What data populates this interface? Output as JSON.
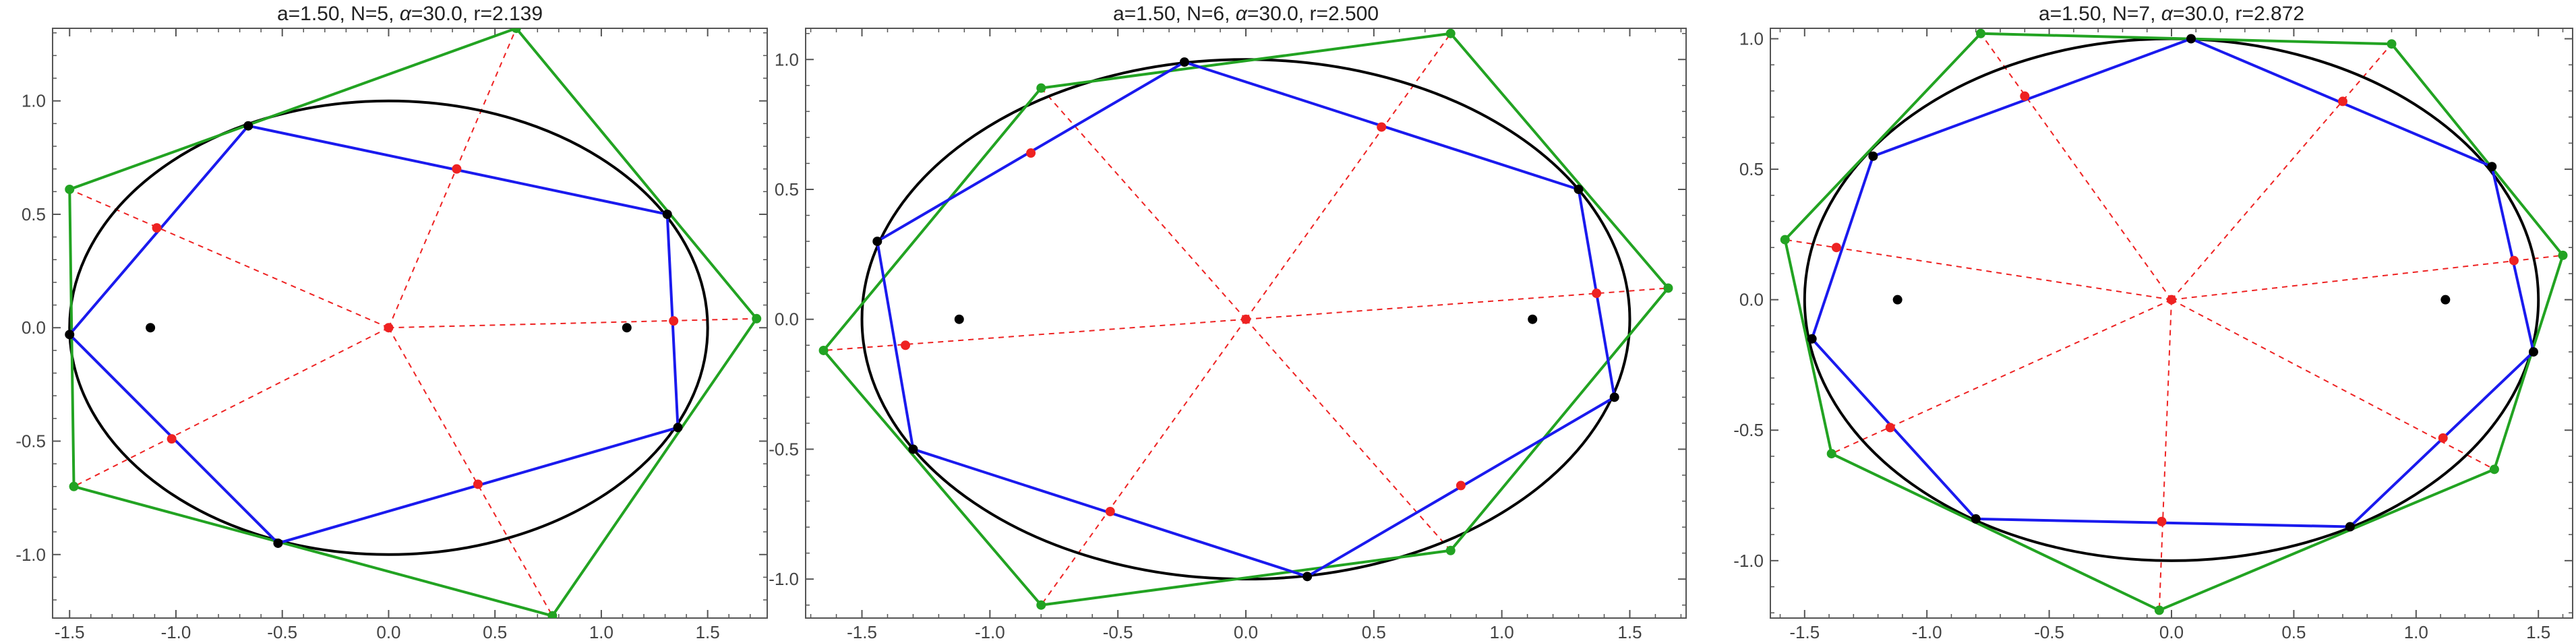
{
  "panels": [
    {
      "title": "a=1.50, N=5, α=30.0, r=2.139",
      "title_parts": [
        "a=1.50, N=5, ",
        "α",
        "=30.0, r=2.139"
      ],
      "xrange": [
        -1.58,
        1.78
      ],
      "yrange": [
        -1.28,
        1.32
      ],
      "xticks": [
        -1.5,
        -1.0,
        -0.5,
        0.0,
        0.5,
        1.0,
        1.5
      ],
      "xtick_labels": [
        "-1.5",
        "-1.0",
        "-0.5",
        "0.0",
        "0.5",
        "1.0",
        "1.5"
      ],
      "yticks": [
        -1.0,
        -0.5,
        0.0,
        0.5,
        1.0
      ],
      "ytick_labels": [
        "-1.0",
        "-0.5",
        "0.0",
        "0.5",
        "1.0"
      ],
      "center": [
        0.0,
        0.0
      ],
      "foci": [
        [
          -1.12,
          0.0
        ],
        [
          1.12,
          0.0
        ]
      ],
      "inner": [
        [
          -1.5,
          -0.03
        ],
        [
          -0.66,
          0.89
        ],
        [
          1.31,
          0.5
        ],
        [
          1.36,
          -0.44
        ],
        [
          -0.52,
          -0.95
        ]
      ],
      "outer": [
        [
          -1.5,
          0.61
        ],
        [
          0.6,
          1.32
        ],
        [
          1.73,
          0.04
        ],
        [
          0.77,
          -1.27
        ],
        [
          -1.48,
          -0.7
        ]
      ],
      "midpoints": [
        [
          -1.09,
          0.44
        ],
        [
          0.32,
          0.7
        ],
        [
          1.34,
          0.03
        ],
        [
          0.42,
          -0.69
        ],
        [
          -1.02,
          -0.49
        ]
      ]
    },
    {
      "title": "a=1.50, N=6, α=30.0, r=2.500",
      "title_parts": [
        "a=1.50, N=6, ",
        "α",
        "=30.0, r=2.500"
      ],
      "xrange": [
        -1.72,
        1.72
      ],
      "yrange": [
        -1.15,
        1.12
      ],
      "xticks": [
        -1.5,
        -1.0,
        -0.5,
        0.0,
        0.5,
        1.0,
        1.5
      ],
      "xtick_labels": [
        "-1.5",
        "-1.0",
        "-0.5",
        "0.0",
        "0.5",
        "1.0",
        "1.5"
      ],
      "yticks": [
        -1.0,
        -0.5,
        0.0,
        0.5,
        1.0
      ],
      "ytick_labels": [
        "-1.0",
        "-0.5",
        "0.0",
        "0.5",
        "1.0"
      ],
      "center": [
        0.0,
        0.0
      ],
      "foci": [
        [
          -1.12,
          0.0
        ],
        [
          1.12,
          0.0
        ]
      ],
      "inner": [
        [
          -1.44,
          0.3
        ],
        [
          -0.24,
          0.99
        ],
        [
          1.3,
          0.5
        ],
        [
          1.44,
          -0.3
        ],
        [
          0.24,
          -0.99
        ],
        [
          -1.3,
          -0.5
        ]
      ],
      "outer": [
        [
          -1.65,
          -0.12
        ],
        [
          -0.8,
          0.89
        ],
        [
          0.8,
          1.1
        ],
        [
          1.65,
          0.12
        ],
        [
          0.8,
          -0.89
        ],
        [
          -0.8,
          -1.1
        ]
      ],
      "midpoints": [
        [
          -1.33,
          -0.1
        ],
        [
          -0.84,
          0.64
        ],
        [
          0.53,
          0.74
        ],
        [
          1.37,
          0.1
        ],
        [
          0.84,
          -0.64
        ],
        [
          -0.53,
          -0.74
        ]
      ]
    },
    {
      "title": "a=1.50, N=7, α=30.0, r=2.872",
      "title_parts": [
        "a=1.50, N=7, ",
        "α",
        "=30.0, r=2.872"
      ],
      "xrange": [
        -1.64,
        1.64
      ],
      "yrange": [
        -1.22,
        1.04
      ],
      "xticks": [
        -1.5,
        -1.0,
        -0.5,
        0.0,
        0.5,
        1.0,
        1.5
      ],
      "xtick_labels": [
        "-1.5",
        "-1.0",
        "-0.5",
        "0.0",
        "0.5",
        "1.0",
        "1.5"
      ],
      "yticks": [
        -1.0,
        -0.5,
        0.0,
        0.5,
        1.0
      ],
      "ytick_labels": [
        "-1.0",
        "-0.5",
        "0.0",
        "0.5",
        "1.0"
      ],
      "center": [
        0.0,
        0.0
      ],
      "foci": [
        [
          -1.12,
          0.0
        ],
        [
          1.12,
          0.0
        ]
      ],
      "inner": [
        [
          -1.47,
          -0.15
        ],
        [
          -1.22,
          0.55
        ],
        [
          0.08,
          1.0
        ],
        [
          1.31,
          0.51
        ],
        [
          1.48,
          -0.2
        ],
        [
          0.73,
          -0.87
        ],
        [
          -0.8,
          -0.84
        ]
      ],
      "outer": [
        [
          -1.58,
          0.23
        ],
        [
          -0.78,
          1.02
        ],
        [
          0.9,
          0.98
        ],
        [
          1.6,
          0.17
        ],
        [
          1.32,
          -0.65
        ],
        [
          -0.05,
          -1.19
        ],
        [
          -1.39,
          -0.59
        ]
      ],
      "midpoints": [
        [
          -1.37,
          0.2
        ],
        [
          -0.6,
          0.78
        ],
        [
          0.7,
          0.76
        ],
        [
          1.4,
          0.15
        ],
        [
          1.11,
          -0.53
        ],
        [
          -0.04,
          -0.85
        ],
        [
          -1.15,
          -0.49
        ]
      ]
    }
  ],
  "colors": {
    "ellipse": "#000000",
    "inner_polygon": "#1a1aee",
    "outer_polygon": "#22a322",
    "rays": "#ee2222",
    "frame": "#555555"
  },
  "ellipse": {
    "a": 1.5,
    "b": 1.0
  }
}
